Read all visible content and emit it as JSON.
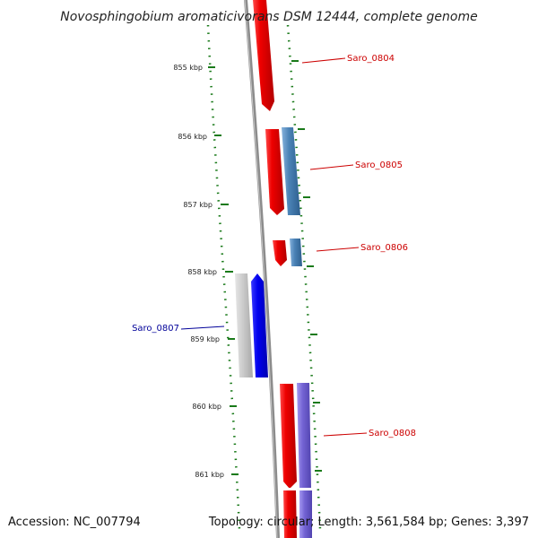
{
  "title": "Novosphingobium aromaticivorans DSM 12444, complete genome",
  "footer": {
    "accession": "Accession: NC_007794",
    "summary": "Topology: circular; Length: 3,561,584 bp; Genes: 3,397"
  },
  "ruler": {
    "tick_color": "#1a7a1a",
    "ticks": [
      "855 kbp",
      "856 kbp",
      "857 kbp",
      "858 kbp",
      "859 kbp",
      "860 kbp",
      "861 kbp"
    ]
  },
  "backbone_color": "#8c8c8c",
  "labels": [
    {
      "text": "Saro_0804",
      "color": "#cc0000"
    },
    {
      "text": "Saro_0805",
      "color": "#cc0000"
    },
    {
      "text": "Saro_0806",
      "color": "#cc0000"
    },
    {
      "text": "Saro_0807",
      "color": "#000099"
    },
    {
      "text": "Saro_0808",
      "color": "#cc0000"
    }
  ],
  "feature_colors": {
    "red": "#e0001a",
    "steelblue": "#4a82b6",
    "blue": "#0000e6",
    "grey": "#c4c4c4",
    "purple": "#7464d4"
  }
}
